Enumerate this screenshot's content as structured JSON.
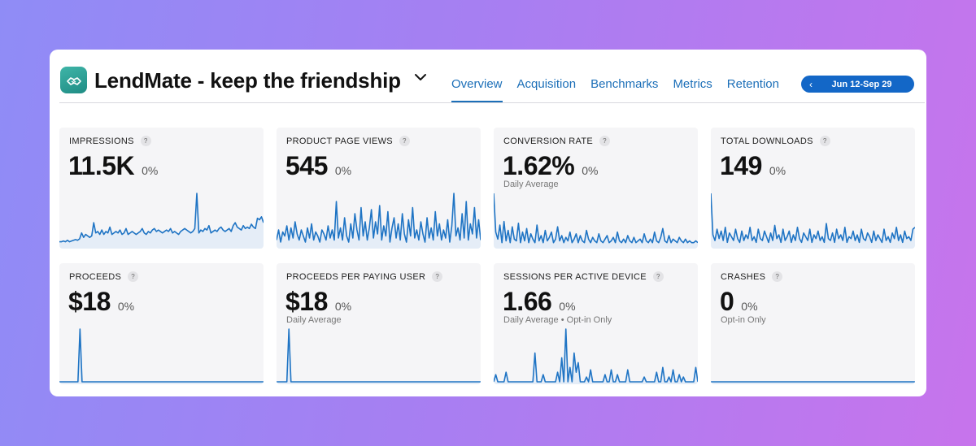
{
  "app": {
    "title": "LendMate - keep the friendship",
    "date_range": "Jun 12-Sep 29",
    "date_prev_glyph": "‹",
    "dropdown_glyph": "⌄"
  },
  "tabs": [
    {
      "label": "Overview",
      "active": true
    },
    {
      "label": "Acquisition",
      "active": false
    },
    {
      "label": "Benchmarks",
      "active": false
    },
    {
      "label": "Metrics",
      "active": false
    },
    {
      "label": "Retention",
      "active": false
    }
  ],
  "colors": {
    "accent": "#1c6fb8",
    "pill": "#1367c7",
    "line": "#1f74c4",
    "fill": "#dbe8f6"
  },
  "help_glyph": "?",
  "metrics": [
    {
      "title": "IMPRESSIONS",
      "value": "11.5K",
      "change": "0%",
      "subtitle": "",
      "series": [
        3,
        3,
        3.5,
        3,
        4,
        3,
        3.5,
        4,
        4.5,
        4,
        5,
        9,
        6,
        8,
        7,
        6,
        7,
        16,
        9,
        10,
        8,
        11,
        8,
        10,
        9,
        13,
        8,
        9,
        10,
        9,
        11,
        8,
        9,
        12,
        8,
        9,
        10,
        9,
        8,
        9,
        10,
        12,
        9,
        8,
        10,
        9,
        11,
        12,
        10,
        11,
        10,
        9,
        10,
        11,
        10,
        12,
        9,
        10,
        9,
        8,
        10,
        11,
        12,
        11,
        10,
        9,
        10,
        12,
        36,
        9,
        11,
        10,
        12,
        11,
        14,
        9,
        10,
        11,
        10,
        12,
        13,
        11,
        10,
        11,
        12,
        10,
        14,
        16,
        13,
        12,
        11,
        14,
        12,
        13,
        12,
        15,
        13,
        12,
        19,
        18,
        20,
        16
      ]
    },
    {
      "title": "PRODUCT PAGE VIEWS",
      "value": "545",
      "change": "0%",
      "subtitle": "",
      "series": [
        3,
        8,
        2,
        7,
        5,
        10,
        3,
        9,
        4,
        12,
        6,
        3,
        8,
        5,
        2,
        9,
        4,
        11,
        3,
        7,
        5,
        2,
        8,
        6,
        3,
        10,
        4,
        8,
        3,
        22,
        4,
        9,
        3,
        14,
        5,
        2,
        11,
        4,
        16,
        8,
        3,
        19,
        5,
        12,
        3,
        9,
        18,
        4,
        12,
        6,
        20,
        3,
        10,
        5,
        17,
        2,
        9,
        14,
        4,
        11,
        3,
        16,
        6,
        2,
        13,
        5,
        19,
        4,
        8,
        3,
        12,
        6,
        2,
        14,
        4,
        9,
        3,
        17,
        5,
        11,
        3,
        8,
        4,
        13,
        2,
        10,
        26,
        5,
        9,
        3,
        16,
        4,
        22,
        3,
        11,
        6,
        19,
        4,
        13,
        3
      ]
    },
    {
      "title": "CONVERSION RATE",
      "value": "1.62%",
      "change": "0%",
      "subtitle": "Daily Average",
      "series": [
        30,
        8,
        4,
        12,
        2,
        14,
        3,
        9,
        2,
        11,
        4,
        3,
        13,
        2,
        8,
        3,
        10,
        2,
        7,
        4,
        2,
        12,
        3,
        6,
        2,
        9,
        3,
        5,
        8,
        2,
        4,
        11,
        3,
        6,
        2,
        5,
        3,
        8,
        2,
        4,
        7,
        2,
        6,
        3,
        2,
        9,
        4,
        2,
        5,
        3,
        2,
        7,
        3,
        2,
        4,
        6,
        2,
        3,
        5,
        2,
        8,
        3,
        2,
        4,
        2,
        6,
        3,
        2,
        5,
        2,
        3,
        4,
        2,
        7,
        3,
        2,
        4,
        2,
        8,
        3,
        2,
        5,
        10,
        3,
        2,
        6,
        2,
        4,
        3,
        2,
        5,
        3,
        2,
        4,
        2,
        3,
        2,
        2,
        3,
        2
      ]
    },
    {
      "title": "TOTAL DOWNLOADS",
      "value": "149",
      "change": "0%",
      "subtitle": "",
      "series": [
        28,
        6,
        3,
        9,
        4,
        8,
        3,
        10,
        2,
        7,
        5,
        3,
        9,
        4,
        2,
        8,
        3,
        6,
        4,
        10,
        3,
        5,
        2,
        9,
        4,
        3,
        8,
        5,
        2,
        7,
        3,
        11,
        4,
        6,
        2,
        9,
        3,
        5,
        8,
        2,
        6,
        3,
        10,
        4,
        2,
        7,
        5,
        3,
        9,
        2,
        6,
        4,
        8,
        3,
        5,
        2,
        12,
        4,
        3,
        7,
        2,
        9,
        4,
        6,
        3,
        10,
        2,
        5,
        4,
        8,
        3,
        6,
        2,
        9,
        4,
        3,
        7,
        5,
        2,
        8,
        3,
        6,
        4,
        2,
        9,
        3,
        5,
        2,
        7,
        4,
        10,
        3,
        6,
        2,
        8,
        4,
        5,
        3,
        9,
        10
      ]
    },
    {
      "title": "PROCEEDS",
      "value": "$18",
      "change": "0%",
      "subtitle": "",
      "series": [
        0,
        0,
        0,
        0,
        0,
        0,
        0,
        0,
        0,
        0,
        36,
        0,
        0,
        0,
        0,
        0,
        0,
        0,
        0,
        0,
        0,
        0,
        0,
        0,
        0,
        0,
        0,
        0,
        0,
        0,
        0,
        0,
        0,
        0,
        0,
        0,
        0,
        0,
        0,
        0,
        0,
        0,
        0,
        0,
        0,
        0,
        0,
        0,
        0,
        0,
        0,
        0,
        0,
        0,
        0,
        0,
        0,
        0,
        0,
        0,
        0,
        0,
        0,
        0,
        0,
        0,
        0,
        0,
        0,
        0,
        0,
        0,
        0,
        0,
        0,
        0,
        0,
        0,
        0,
        0,
        0,
        0,
        0,
        0,
        0,
        0,
        0,
        0,
        0,
        0,
        0,
        0,
        0,
        0,
        0,
        0,
        0,
        0,
        0,
        0
      ]
    },
    {
      "title": "PROCEEDS PER PAYING USER",
      "value": "$18",
      "change": "0%",
      "subtitle": "Daily Average",
      "series": [
        0,
        0,
        0,
        0,
        0,
        0,
        36,
        0,
        0,
        0,
        0,
        0,
        0,
        0,
        0,
        0,
        0,
        0,
        0,
        0,
        0,
        0,
        0,
        0,
        0,
        0,
        0,
        0,
        0,
        0,
        0,
        0,
        0,
        0,
        0,
        0,
        0,
        0,
        0,
        0,
        0,
        0,
        0,
        0,
        0,
        0,
        0,
        0,
        0,
        0,
        0,
        0,
        0,
        0,
        0,
        0,
        0,
        0,
        0,
        0,
        0,
        0,
        0,
        0,
        0,
        0,
        0,
        0,
        0,
        0,
        0,
        0,
        0,
        0,
        0,
        0,
        0,
        0,
        0,
        0,
        0,
        0,
        0,
        0,
        0,
        0,
        0,
        0,
        0,
        0,
        0,
        0,
        0,
        0,
        0,
        0,
        0,
        0,
        0,
        0
      ]
    },
    {
      "title": "SESSIONS PER ACTIVE DEVICE",
      "value": "1.66",
      "change": "0%",
      "subtitle": "Daily Average • Opt-in Only",
      "series": [
        0,
        3,
        0,
        0,
        0,
        0,
        4,
        0,
        0,
        0,
        0,
        0,
        0,
        0,
        0,
        0,
        0,
        0,
        0,
        0,
        12,
        0,
        0,
        0,
        3,
        0,
        0,
        0,
        0,
        0,
        0,
        4,
        0,
        10,
        0,
        22,
        0,
        6,
        0,
        12,
        4,
        8,
        0,
        0,
        0,
        2,
        0,
        5,
        0,
        0,
        0,
        0,
        0,
        0,
        3,
        0,
        0,
        5,
        0,
        0,
        3,
        0,
        0,
        0,
        0,
        5,
        0,
        0,
        0,
        0,
        0,
        0,
        0,
        2,
        0,
        0,
        0,
        0,
        0,
        4,
        0,
        0,
        6,
        0,
        0,
        2,
        0,
        5,
        0,
        0,
        3,
        0,
        2,
        0,
        0,
        0,
        0,
        0,
        6,
        0
      ]
    },
    {
      "title": "CRASHES",
      "value": "0",
      "change": "0%",
      "subtitle": "Opt-in Only",
      "series": [
        0,
        0,
        0,
        0,
        0,
        0,
        0,
        0,
        0,
        0,
        0,
        0,
        0,
        0,
        0,
        0,
        0,
        0,
        0,
        0,
        0,
        0,
        0,
        0,
        0,
        0,
        0,
        0,
        0,
        0,
        0,
        0,
        0,
        0,
        0,
        0,
        0,
        0,
        0,
        0,
        0,
        0,
        0,
        0,
        0,
        0,
        0,
        0,
        0,
        0,
        0,
        0,
        0,
        0,
        0,
        0,
        0,
        0,
        0,
        0,
        0,
        0,
        0,
        0,
        0,
        0,
        0,
        0,
        0,
        0,
        0,
        0,
        0,
        0,
        0,
        0,
        0,
        0,
        0,
        0,
        0,
        0,
        0,
        0,
        0,
        0,
        0,
        0,
        0,
        0,
        0,
        0,
        0,
        0,
        0,
        0,
        0,
        0,
        0,
        0
      ]
    }
  ]
}
